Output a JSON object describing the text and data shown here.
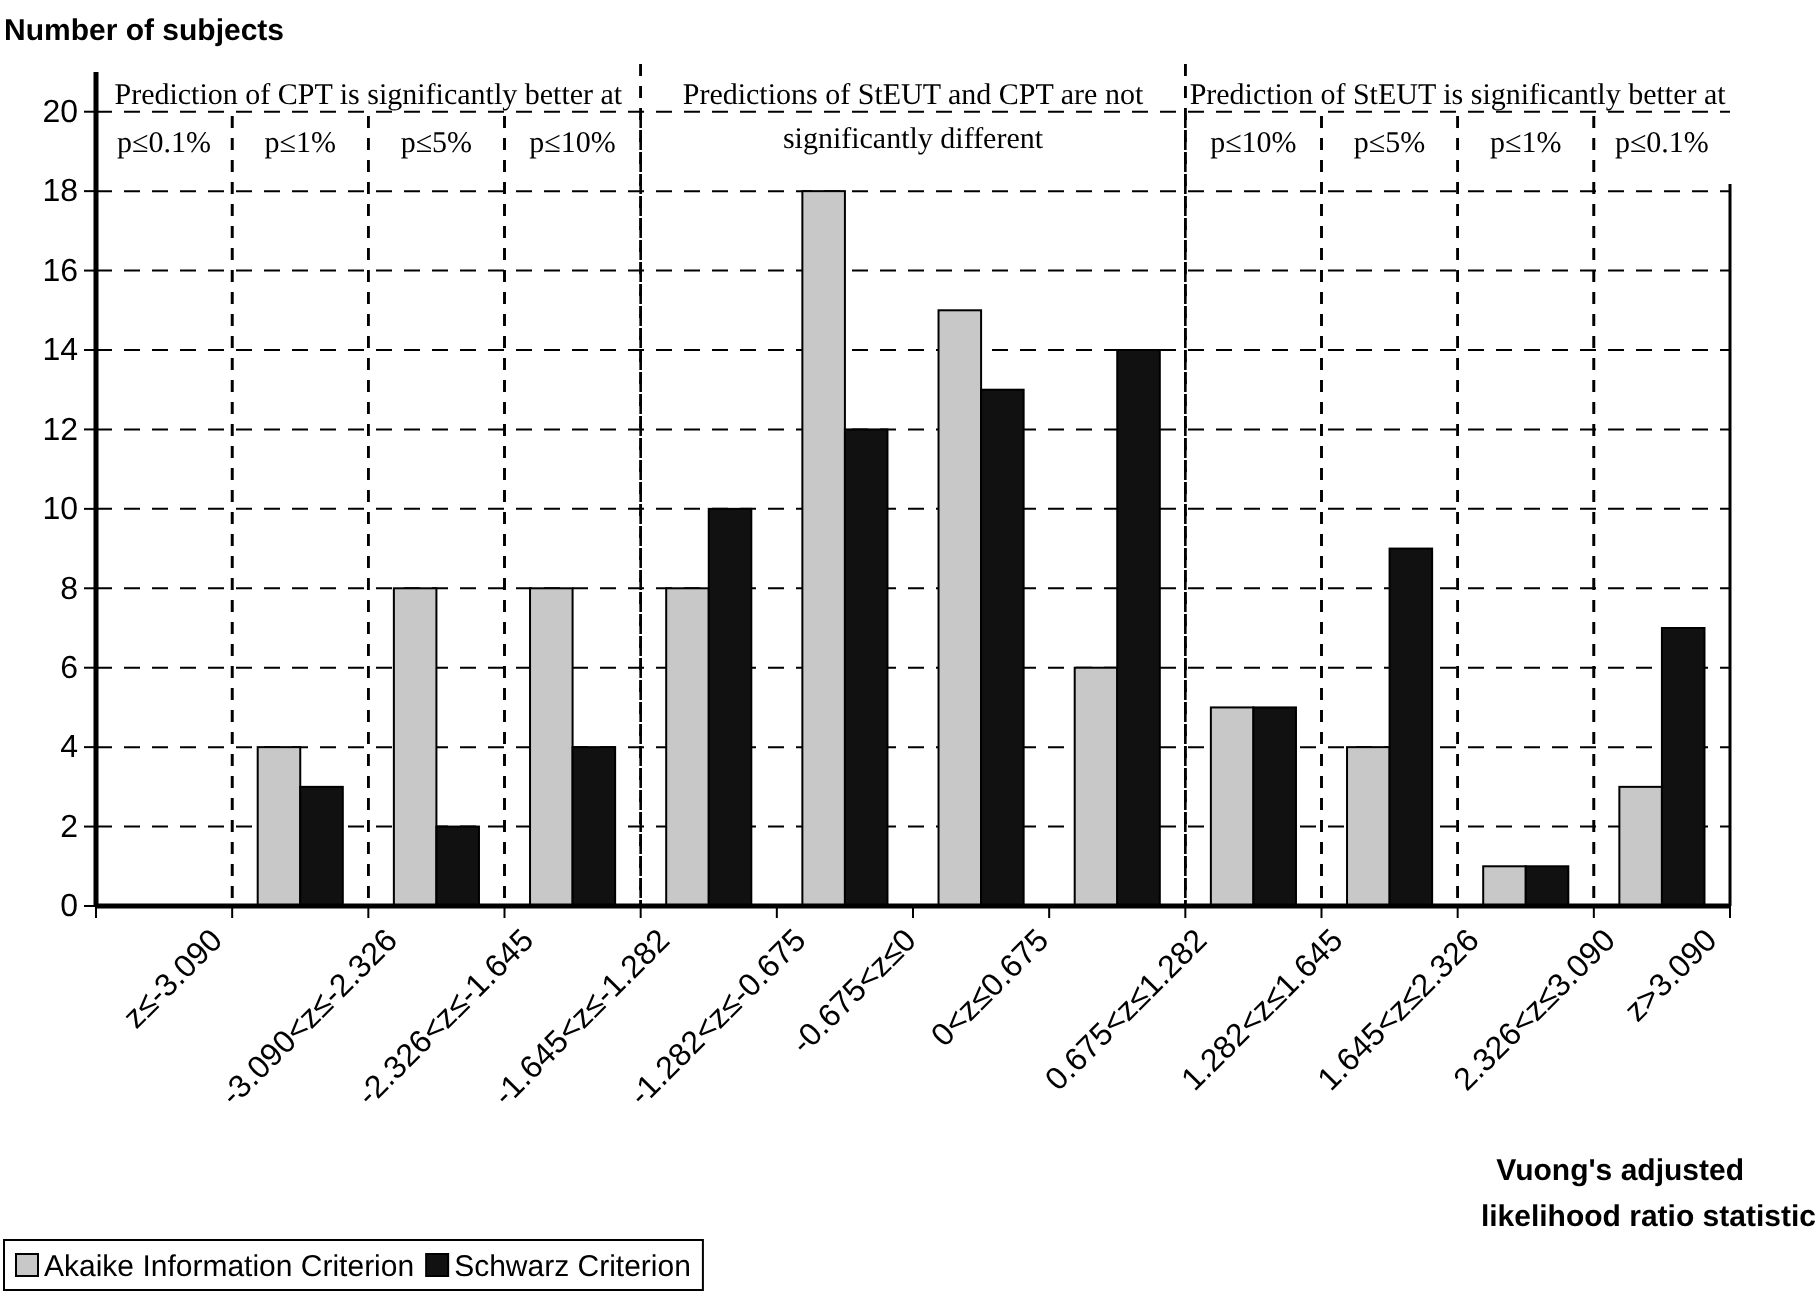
{
  "chart_data": {
    "type": "bar",
    "ylabel": "Number of subjects",
    "xlabel": "Vuong's adjusted likelihood ratio statistic",
    "categories": [
      "z≤-3.090",
      "-3.090<z≤-2.326",
      "-2.326<z≤-1.645",
      "-1.645<z≤-1.282",
      "-1.282<z≤-0.675",
      "-0.675<z≤0",
      "0<z≤0.675",
      "0.675<z≤1.282",
      "1.282<z≤1.645",
      "1.645<z≤2.326",
      "2.326<z≤3.090",
      "z>3.090"
    ],
    "series": [
      {
        "name": "Akaike Information Criterion",
        "color": "#c8c8c8",
        "values": [
          0,
          4,
          8,
          8,
          8,
          18,
          15,
          6,
          5,
          4,
          1,
          3
        ]
      },
      {
        "name": "Schwarz Criterion",
        "color": "#111111",
        "values": [
          0,
          3,
          2,
          4,
          10,
          12,
          13,
          14,
          5,
          9,
          1,
          7
        ]
      }
    ],
    "ylim": [
      0,
      21
    ],
    "yticks": [
      0,
      2,
      4,
      6,
      8,
      10,
      12,
      14,
      16,
      18,
      20
    ],
    "grid": "y",
    "legend": "bottom left",
    "annotations": [
      "Prediction of CPT is significantly better at",
      "p≤0.1%",
      "p≤1%",
      "p≤5%",
      "p≤10%",
      "Predictions of StEUT and CPT are not significantly different",
      "Prediction of StEUT is significantly better at",
      "p≤10%",
      "p≤5%",
      "p≤1%",
      "p≤0.1%"
    ]
  }
}
